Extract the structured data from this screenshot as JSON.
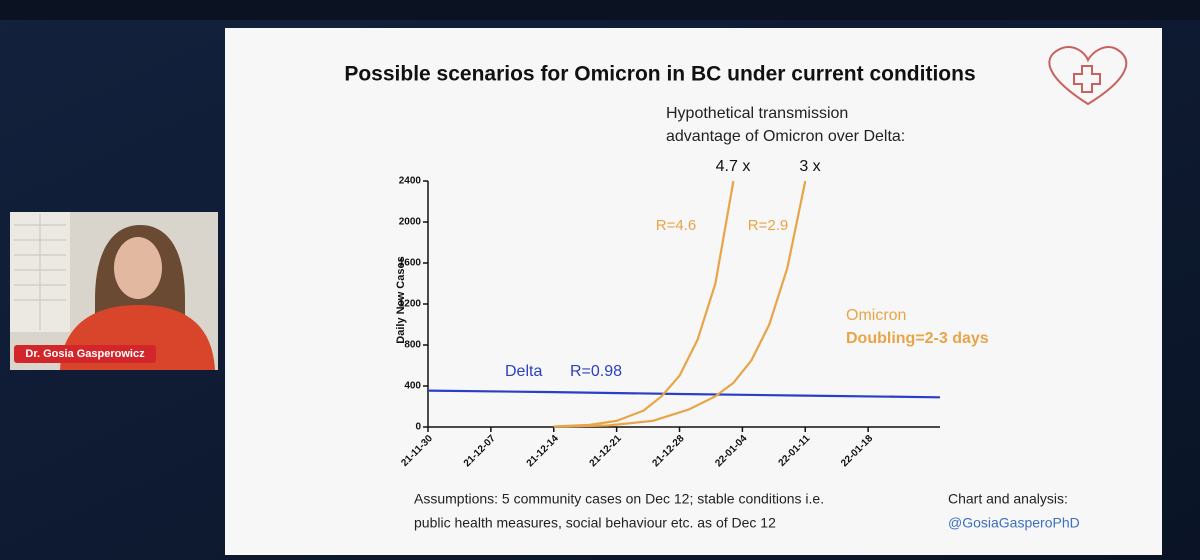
{
  "chart_data": {
    "type": "line",
    "title": "Possible scenarios for Omicron in BC under current conditions",
    "subtitle": [
      "Hypothetical transmission",
      "advantage of Omicron over Delta:"
    ],
    "y_label": "Daily New Cases",
    "xlim": [
      "21-11-30",
      "22-01-26"
    ],
    "xticks": [
      "21-11-30",
      "21-12-07",
      "21-12-14",
      "21-12-21",
      "21-12-28",
      "22-01-04",
      "22-01-11",
      "22-01-18"
    ],
    "ylim": [
      0,
      2400
    ],
    "yticks": [
      0,
      400,
      800,
      1200,
      1600,
      2000,
      2400
    ],
    "series": [
      {
        "name": "Delta",
        "color": "#2b3fc4",
        "x": [
          "21-11-30",
          "21-12-14",
          "21-12-28",
          "22-01-11",
          "22-01-26"
        ],
        "values": [
          355,
          340,
          322,
          306,
          290
        ]
      },
      {
        "name": "4.7 x",
        "color": "#e8a547",
        "x": [
          "21-12-14",
          "21-12-18",
          "21-12-21",
          "21-12-24",
          "21-12-26",
          "21-12-28",
          "21-12-30",
          "22-01-01",
          "22-01-03"
        ],
        "values": [
          5,
          20,
          60,
          160,
          300,
          500,
          850,
          1400,
          2400
        ]
      },
      {
        "name": "3 x",
        "color": "#e8a547",
        "x": [
          "21-12-14",
          "21-12-20",
          "21-12-25",
          "21-12-29",
          "22-01-01",
          "22-01-03",
          "22-01-05",
          "22-01-07",
          "22-01-09",
          "22-01-11"
        ],
        "values": [
          3,
          15,
          60,
          170,
          300,
          430,
          650,
          1000,
          1550,
          2400
        ]
      }
    ],
    "annotations": [
      "R=4.6",
      "R=2.9",
      "Omicron",
      "Doubling=2-3 days",
      "R=0.98"
    ],
    "assumptions": [
      "Assumptions: 5 community cases on Dec 12; stable conditions i.e.",
      "public health measures, social behaviour etc. as of Dec 12"
    ],
    "credit": [
      "Chart and analysis:",
      "@GosiaGasperoPhD"
    ]
  },
  "webcam": {
    "name": "Dr. Gosia Gasperowicz"
  }
}
